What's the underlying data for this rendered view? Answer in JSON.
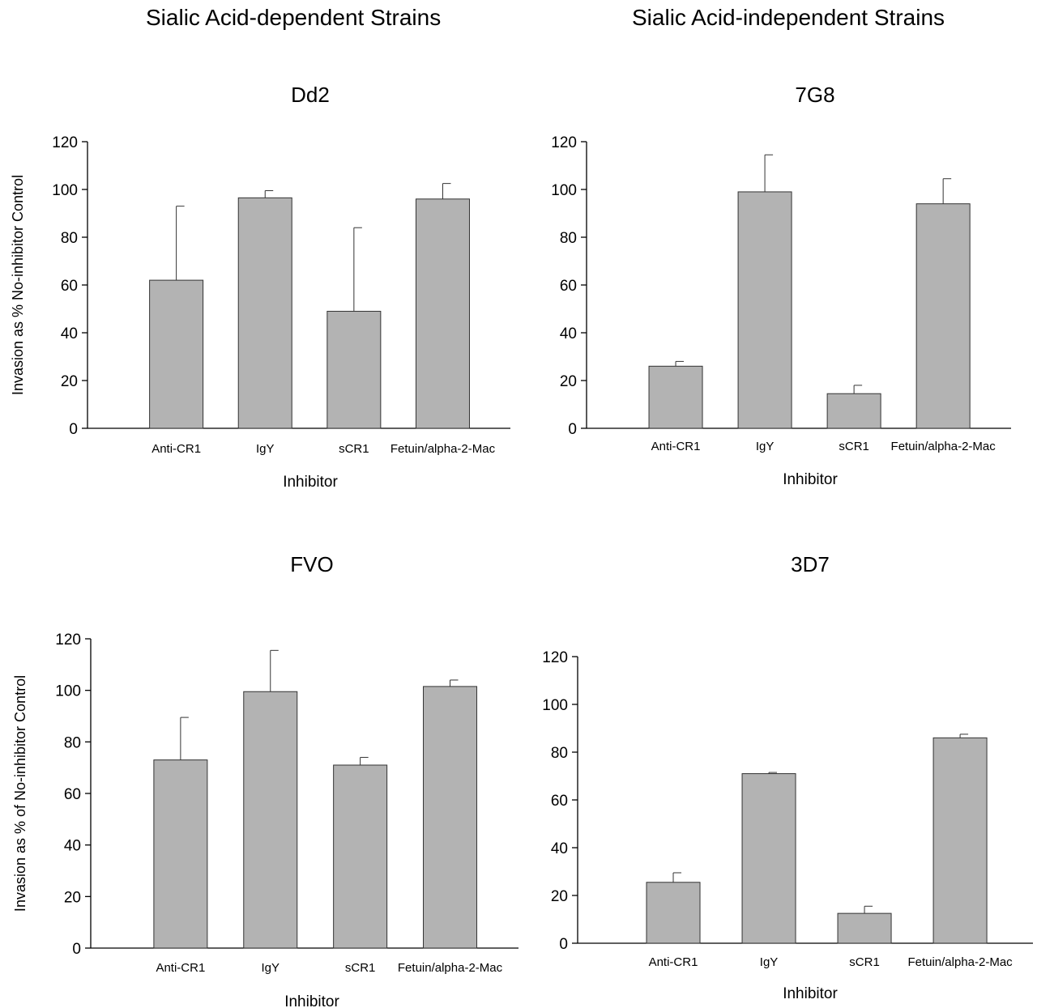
{
  "headings": {
    "left": "Sialic Acid-dependent Strains",
    "right": "Sialic Acid-independent Strains"
  },
  "colors": {
    "bar_fill": "#b3b3b3",
    "bar_stroke": "#333333",
    "axis": "#000000"
  },
  "chart_data": [
    {
      "type": "bar",
      "title": "Dd2",
      "xlabel": "Inhibitor",
      "ylabel": "Invasion as % No-inhibitor Control",
      "categories": [
        "Anti-CR1",
        "IgY",
        "sCR1",
        "Fetuin/alpha-2-Mac"
      ],
      "values": [
        62,
        96.5,
        49,
        96
      ],
      "errors": [
        31,
        3,
        35,
        6.5
      ],
      "ylim": [
        0,
        120
      ],
      "yticks": [
        0,
        20,
        40,
        60,
        80,
        100,
        120
      ],
      "grid": false
    },
    {
      "type": "bar",
      "title": "7G8",
      "xlabel": "Inhibitor",
      "ylabel": "",
      "categories": [
        "Anti-CR1",
        "IgY",
        "sCR1",
        "Fetuin/alpha-2-Mac"
      ],
      "values": [
        26,
        99,
        14.5,
        94
      ],
      "errors": [
        2,
        15.5,
        3.5,
        10.5
      ],
      "ylim": [
        0,
        120
      ],
      "yticks": [
        0,
        20,
        40,
        60,
        80,
        100,
        120
      ],
      "grid": false
    },
    {
      "type": "bar",
      "title": "FVO",
      "xlabel": "Inhibitor",
      "ylabel": "Invasion as % of No-inhibitor Control",
      "categories": [
        "Anti-CR1",
        "IgY",
        "sCR1",
        "Fetuin/alpha-2-Mac"
      ],
      "values": [
        73,
        99.5,
        71,
        101.5
      ],
      "errors": [
        16.5,
        16,
        3,
        2.5
      ],
      "ylim": [
        0,
        120
      ],
      "yticks": [
        0,
        20,
        40,
        60,
        80,
        100,
        120
      ],
      "grid": false
    },
    {
      "type": "bar",
      "title": "3D7",
      "xlabel": "Inhibitor",
      "ylabel": "",
      "categories": [
        "Anti-CR1",
        "IgY",
        "sCR1",
        "Fetuin/alpha-2-Mac"
      ],
      "values": [
        25.5,
        71,
        12.5,
        86
      ],
      "errors": [
        4,
        0.5,
        3,
        1.5
      ],
      "ylim": [
        0,
        120
      ],
      "yticks": [
        0,
        20,
        40,
        60,
        80,
        100,
        120
      ],
      "grid": false
    }
  ]
}
